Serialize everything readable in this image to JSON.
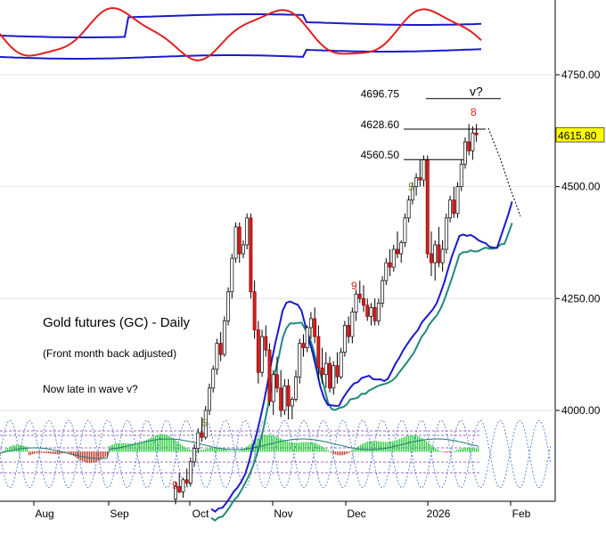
{
  "chart_data": {
    "type": "candlestick",
    "title": "Gold futures (GC) - Daily",
    "subtitle": "(Front month back adjusted)",
    "note": "Now late in wave v?",
    "price_axis": {
      "ticks": [
        "4750.00",
        "4500.00",
        "4250.00",
        "4000.00"
      ],
      "tick_values": [
        4750,
        4500,
        4250,
        4000
      ],
      "range": [
        3797,
        4917
      ],
      "last_price": "4615.80"
    },
    "time_axis": {
      "labels": [
        "Aug",
        "Sep",
        "Oct",
        "Nov",
        "Dec",
        "2026",
        "Feb"
      ]
    },
    "levels": [
      {
        "label": "4696.75",
        "value": 4696.75
      },
      {
        "label": "4628.60",
        "value": 4628.6
      },
      {
        "label": "4560.50",
        "value": 4560.5
      }
    ],
    "wave_label": "v?",
    "count_labels": [
      {
        "text": "9",
        "color": "#d62020"
      },
      {
        "text": "5",
        "color": "#8b8b2a"
      },
      {
        "text": "9",
        "color": "#d62020"
      },
      {
        "text": "5",
        "color": "#8b8b2a"
      },
      {
        "text": "8",
        "color": "#d62020"
      }
    ],
    "candles": [
      [
        3802,
        3840,
        3790,
        3830
      ],
      [
        3830,
        3860,
        3815,
        3818
      ],
      [
        3818,
        3850,
        3805,
        3845
      ],
      [
        3845,
        3870,
        3830,
        3838
      ],
      [
        3838,
        3895,
        3830,
        3885
      ],
      [
        3885,
        3925,
        3875,
        3915
      ],
      [
        3915,
        3960,
        3905,
        3950
      ],
      [
        3950,
        3985,
        3930,
        3940
      ],
      [
        3940,
        4010,
        3935,
        4000
      ],
      [
        4000,
        4060,
        3990,
        4050
      ],
      [
        4050,
        4100,
        4040,
        4092
      ],
      [
        4092,
        4160,
        4080,
        4150
      ],
      [
        4150,
        4175,
        4110,
        4125
      ],
      [
        4125,
        4210,
        4120,
        4200
      ],
      [
        4200,
        4275,
        4190,
        4265
      ],
      [
        4265,
        4350,
        4250,
        4340
      ],
      [
        4340,
        4420,
        4330,
        4410
      ],
      [
        4410,
        4420,
        4330,
        4350
      ],
      [
        4350,
        4380,
        4340,
        4370
      ],
      [
        4370,
        4440,
        4360,
        4430
      ],
      [
        4430,
        4440,
        4250,
        4265
      ],
      [
        4265,
        4290,
        4160,
        4180
      ],
      [
        4180,
        4200,
        4060,
        4085
      ],
      [
        4085,
        4180,
        4075,
        4165
      ],
      [
        4165,
        4190,
        4120,
        4135
      ],
      [
        4135,
        4150,
        4010,
        4020
      ],
      [
        4020,
        4090,
        3990,
        4080
      ],
      [
        4080,
        4120,
        4040,
        4050
      ],
      [
        4050,
        4090,
        3985,
        4000
      ],
      [
        4000,
        4070,
        3990,
        4055
      ],
      [
        4055,
        4070,
        3980,
        4010
      ],
      [
        4010,
        4030,
        3980,
        4025
      ],
      [
        4025,
        4090,
        4020,
        4075
      ],
      [
        4075,
        4160,
        4060,
        4150
      ],
      [
        4150,
        4170,
        4120,
        4140
      ],
      [
        4140,
        4190,
        4130,
        4185
      ],
      [
        4185,
        4220,
        4160,
        4205
      ],
      [
        4205,
        4230,
        4150,
        4165
      ],
      [
        4165,
        4190,
        4070,
        4095
      ],
      [
        4095,
        4140,
        4060,
        4080
      ],
      [
        4080,
        4130,
        4050,
        4105
      ],
      [
        4105,
        4120,
        4040,
        4050
      ],
      [
        4050,
        4110,
        4035,
        4100
      ],
      [
        4100,
        4130,
        4060,
        4075
      ],
      [
        4075,
        4140,
        4070,
        4130
      ],
      [
        4130,
        4200,
        4120,
        4190
      ],
      [
        4190,
        4210,
        4150,
        4165
      ],
      [
        4165,
        4230,
        4150,
        4220
      ],
      [
        4220,
        4270,
        4200,
        4260
      ],
      [
        4260,
        4290,
        4240,
        4250
      ],
      [
        4250,
        4280,
        4220,
        4235
      ],
      [
        4235,
        4250,
        4200,
        4210
      ],
      [
        4210,
        4240,
        4190,
        4230
      ],
      [
        4230,
        4250,
        4190,
        4200
      ],
      [
        4200,
        4250,
        4190,
        4240
      ],
      [
        4240,
        4300,
        4230,
        4290
      ],
      [
        4290,
        4340,
        4280,
        4330
      ],
      [
        4330,
        4360,
        4300,
        4320
      ],
      [
        4320,
        4370,
        4310,
        4360
      ],
      [
        4360,
        4400,
        4340,
        4350
      ],
      [
        4350,
        4380,
        4330,
        4375
      ],
      [
        4375,
        4440,
        4365,
        4430
      ],
      [
        4430,
        4480,
        4420,
        4470
      ],
      [
        4470,
        4510,
        4460,
        4500
      ],
      [
        4500,
        4530,
        4480,
        4520
      ],
      [
        4520,
        4560,
        4500,
        4515
      ],
      [
        4515,
        4570,
        4500,
        4560
      ],
      [
        4560,
        4570,
        4340,
        4350
      ],
      [
        4350,
        4400,
        4300,
        4330
      ],
      [
        4330,
        4380,
        4290,
        4370
      ],
      [
        4370,
        4410,
        4320,
        4330
      ],
      [
        4330,
        4380,
        4310,
        4360
      ],
      [
        4360,
        4440,
        4350,
        4430
      ],
      [
        4430,
        4480,
        4420,
        4470
      ],
      [
        4470,
        4500,
        4430,
        4440
      ],
      [
        4440,
        4510,
        4430,
        4500
      ],
      [
        4500,
        4560,
        4490,
        4550
      ],
      [
        4550,
        4610,
        4540,
        4600
      ],
      [
        4600,
        4640,
        4570,
        4580
      ],
      [
        4580,
        4635,
        4560,
        4620
      ],
      [
        4620,
        4640,
        4600,
        4615.8
      ]
    ]
  }
}
